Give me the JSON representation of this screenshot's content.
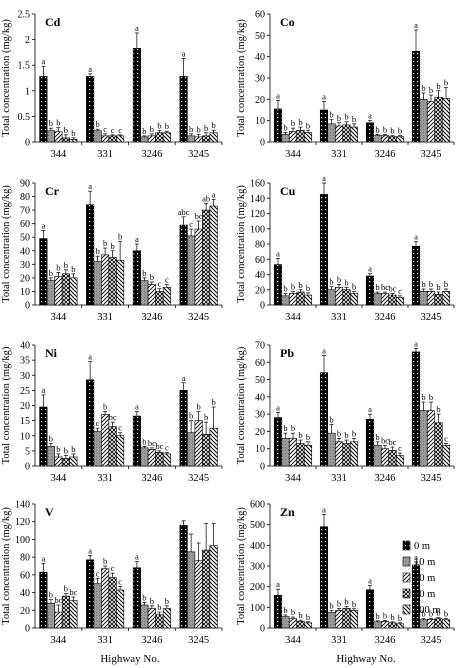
{
  "figure": {
    "ylabel": "Total concentration (mg/kg)",
    "xlabel": "Highway No."
  },
  "legend": [
    "0 m",
    "10 m",
    "20 m",
    "50 m",
    "100 m"
  ],
  "chart_data": [
    {
      "type": "bar",
      "title": "Cd",
      "categories": [
        "344",
        "331",
        "3246",
        "3245"
      ],
      "ylim": [
        0,
        2.5
      ],
      "yticks": [
        0,
        0.5,
        1,
        1.5,
        2,
        2.5
      ],
      "ytick_labels": [
        "0",
        "0.5",
        "1",
        "1.5",
        "2",
        "2.5"
      ],
      "series": [
        {
          "name": "0 m",
          "values": [
            1.28,
            1.28,
            1.83,
            1.28
          ],
          "errors": [
            0.2,
            0.05,
            0.3,
            0.35
          ],
          "letters": [
            "a",
            "a",
            "a",
            "a"
          ]
        },
        {
          "name": "10 m",
          "values": [
            0.22,
            0.22,
            0.1,
            0.12
          ],
          "errors": [
            0.05,
            0.03,
            0.02,
            0.04
          ],
          "letters": [
            "b",
            "b",
            "b",
            "b"
          ]
        },
        {
          "name": "20 m",
          "values": [
            0.2,
            0.12,
            0.12,
            0.1
          ],
          "errors": [
            0.08,
            0.04,
            0.04,
            0.05
          ],
          "letters": [
            "b",
            "c",
            "b",
            "b"
          ]
        },
        {
          "name": "50 m",
          "values": [
            0.08,
            0.12,
            0.18,
            0.12
          ],
          "errors": [
            0.06,
            0.02,
            0.04,
            0.06
          ],
          "letters": [
            "b",
            "c",
            "b",
            "b"
          ]
        },
        {
          "name": "100 m",
          "values": [
            0.05,
            0.12,
            0.18,
            0.18
          ],
          "errors": [
            0.03,
            0.02,
            0.03,
            0.05
          ],
          "letters": [
            "b",
            "c",
            "b",
            "b"
          ]
        }
      ]
    },
    {
      "type": "bar",
      "title": "Co",
      "categories": [
        "344",
        "331",
        "3246",
        "3245"
      ],
      "ylim": [
        0,
        60
      ],
      "yticks": [
        0,
        10,
        20,
        30,
        40,
        50,
        60
      ],
      "ytick_labels": [
        "0",
        "10",
        "20",
        "30",
        "40",
        "50",
        "60"
      ],
      "series": [
        {
          "name": "0 m",
          "values": [
            15.5,
            15,
            9,
            42.5
          ],
          "errors": [
            4,
            4,
            1,
            10
          ],
          "letters": [
            "a",
            "a",
            "a",
            "a"
          ]
        },
        {
          "name": "10 m",
          "values": [
            3.5,
            8.5,
            3,
            20
          ],
          "errors": [
            1,
            2,
            0.5,
            3
          ],
          "letters": [
            "b",
            "b",
            "b",
            "b"
          ]
        },
        {
          "name": "20 m",
          "values": [
            5,
            7.5,
            3,
            19
          ],
          "errors": [
            1.5,
            1.5,
            0.5,
            3
          ],
          "letters": [
            "b",
            "b",
            "b",
            "b"
          ]
        },
        {
          "name": "50 m",
          "values": [
            5.5,
            8,
            2.5,
            21
          ],
          "errors": [
            1.5,
            1.5,
            0.5,
            3
          ],
          "letters": [
            "b",
            "b",
            "b",
            "b"
          ]
        },
        {
          "name": "100 m",
          "values": [
            4.5,
            7,
            2.5,
            20.5
          ],
          "errors": [
            1,
            1.5,
            0.5,
            5
          ],
          "letters": [
            "b",
            "b",
            "b",
            "b"
          ]
        }
      ]
    },
    {
      "type": "bar",
      "title": "Cr",
      "categories": [
        "344",
        "331",
        "3246",
        "3245"
      ],
      "ylim": [
        0,
        90
      ],
      "yticks": [
        0,
        10,
        20,
        30,
        40,
        50,
        60,
        70,
        80,
        90
      ],
      "ytick_labels": [
        "0",
        "10",
        "20",
        "30",
        "40",
        "50",
        "60",
        "70",
        "80",
        "90"
      ],
      "series": [
        {
          "name": "0 m",
          "values": [
            49,
            74,
            40,
            59
          ],
          "errors": [
            6,
            10,
            5,
            6
          ],
          "letters": [
            "a",
            "a",
            "a",
            "abc"
          ]
        },
        {
          "name": "10 m",
          "values": [
            18,
            32,
            18,
            51
          ],
          "errors": [
            2,
            4,
            2,
            5
          ],
          "letters": [
            "b",
            "b",
            "b",
            "c"
          ]
        },
        {
          "name": "20 m",
          "values": [
            21,
            37,
            15,
            56
          ],
          "errors": [
            3,
            5,
            2,
            6
          ],
          "letters": [
            "b",
            "b",
            "b",
            "bc"
          ]
        },
        {
          "name": "50 m",
          "values": [
            23,
            35,
            10,
            70
          ],
          "errors": [
            3,
            5,
            2,
            5
          ],
          "letters": [
            "b",
            "b",
            "c",
            "ab"
          ]
        },
        {
          "name": "100 m",
          "values": [
            20,
            33,
            13,
            73
          ],
          "errors": [
            3,
            14,
            2,
            5
          ],
          "letters": [
            "b",
            "b",
            "c",
            "a"
          ]
        }
      ]
    },
    {
      "type": "bar",
      "title": "Cu",
      "categories": [
        "344",
        "331",
        "3246",
        "3245"
      ],
      "ylim": [
        0,
        160
      ],
      "yticks": [
        0,
        20,
        40,
        60,
        80,
        100,
        120,
        140,
        160
      ],
      "ytick_labels": [
        "0",
        "20",
        "40",
        "60",
        "80",
        "100",
        "120",
        "140",
        "160"
      ],
      "series": [
        {
          "name": "0 m",
          "values": [
            53,
            145,
            38,
            77
          ],
          "errors": [
            8,
            15,
            3,
            6
          ],
          "letters": [
            "a",
            "a",
            "a",
            "a"
          ]
        },
        {
          "name": "10 m",
          "values": [
            12,
            20,
            15,
            18
          ],
          "errors": [
            3,
            4,
            2,
            3
          ],
          "letters": [
            "b",
            "b",
            "b",
            "b"
          ]
        },
        {
          "name": "20 m",
          "values": [
            15,
            23,
            15,
            18
          ],
          "errors": [
            3,
            4,
            2,
            3
          ],
          "letters": [
            "b",
            "b",
            "bc",
            "b"
          ]
        },
        {
          "name": "50 m",
          "values": [
            17,
            20,
            13,
            14
          ],
          "errors": [
            3,
            3,
            2,
            3
          ],
          "letters": [
            "b",
            "b",
            "bc",
            "b"
          ]
        },
        {
          "name": "100 m",
          "values": [
            13,
            15,
            10,
            18
          ],
          "errors": [
            3,
            3,
            2,
            3
          ],
          "letters": [
            "b",
            "b",
            "c",
            "b"
          ]
        }
      ]
    },
    {
      "type": "bar",
      "title": "Ni",
      "categories": [
        "344",
        "331",
        "3246",
        "3245"
      ],
      "ylim": [
        0,
        40
      ],
      "yticks": [
        0,
        5,
        10,
        15,
        20,
        25,
        30,
        35,
        40
      ],
      "ytick_labels": [
        "0",
        "5",
        "10",
        "15",
        "20",
        "25",
        "30",
        "35",
        "40"
      ],
      "series": [
        {
          "name": "0 m",
          "values": [
            19.5,
            28.5,
            16.5,
            25
          ],
          "errors": [
            4,
            6,
            1.5,
            2.5
          ],
          "letters": [
            "a",
            "a",
            "a",
            "a"
          ]
        },
        {
          "name": "10 m",
          "values": [
            6.5,
            11.5,
            6,
            11
          ],
          "errors": [
            1,
            1,
            0.5,
            4
          ],
          "letters": [
            "b",
            "c",
            "b",
            "b"
          ]
        },
        {
          "name": "20 m",
          "values": [
            3,
            17,
            5.5,
            15
          ],
          "errors": [
            1,
            1,
            0.5,
            3
          ],
          "letters": [
            "b",
            "b",
            "bc",
            "b"
          ]
        },
        {
          "name": "50 m",
          "values": [
            2.5,
            13,
            4.5,
            10.5
          ],
          "errors": [
            1,
            1.5,
            0.5,
            4
          ],
          "letters": [
            "b",
            "bc",
            "bc",
            "b"
          ]
        },
        {
          "name": "100 m",
          "values": [
            3,
            10,
            4,
            12.5
          ],
          "errors": [
            1,
            1,
            0.5,
            7
          ],
          "letters": [
            "b",
            "c",
            "c",
            "b"
          ]
        }
      ]
    },
    {
      "type": "bar",
      "title": "Pb",
      "categories": [
        "344",
        "331",
        "3246",
        "3245"
      ],
      "ylim": [
        0,
        70
      ],
      "yticks": [
        0,
        10,
        20,
        30,
        40,
        50,
        60,
        70
      ],
      "ytick_labels": [
        "0",
        "10",
        "20",
        "30",
        "40",
        "50",
        "60",
        "70"
      ],
      "series": [
        {
          "name": "0 m",
          "values": [
            28,
            54,
            27,
            66
          ],
          "errors": [
            3,
            10,
            3,
            2
          ],
          "letters": [
            "a",
            "a",
            "a",
            "a"
          ]
        },
        {
          "name": "10 m",
          "values": [
            16,
            19,
            12,
            32
          ],
          "errors": [
            3,
            5,
            2,
            5
          ],
          "letters": [
            "b",
            "b",
            "b",
            "b"
          ]
        },
        {
          "name": "20 m",
          "values": [
            16,
            14,
            10,
            32
          ],
          "errors": [
            3,
            2,
            2,
            5
          ],
          "letters": [
            "b",
            "b",
            "bc",
            "b"
          ]
        },
        {
          "name": "50 m",
          "values": [
            13,
            13,
            9,
            25
          ],
          "errors": [
            2,
            2,
            2,
            5
          ],
          "letters": [
            "b",
            "b",
            "bc",
            "b"
          ]
        },
        {
          "name": "100 m",
          "values": [
            12,
            14,
            6,
            12
          ],
          "errors": [
            2,
            2,
            1.5,
            1
          ],
          "letters": [
            "b",
            "b",
            "c",
            "c"
          ]
        }
      ]
    },
    {
      "type": "bar",
      "title": "V",
      "categories": [
        "344",
        "331",
        "3246",
        "3245"
      ],
      "ylim": [
        0,
        140
      ],
      "yticks": [
        0,
        20,
        40,
        60,
        80,
        100,
        120,
        140
      ],
      "ytick_labels": [
        "0",
        "20",
        "40",
        "60",
        "80",
        "100",
        "120",
        "140"
      ],
      "series": [
        {
          "name": "0 m",
          "values": [
            63,
            77,
            68,
            116
          ],
          "errors": [
            10,
            5,
            7,
            5
          ],
          "letters": [
            "a",
            "a",
            "a",
            ""
          ]
        },
        {
          "name": "10 m",
          "values": [
            28,
            50,
            26,
            86
          ],
          "errors": [
            4,
            6,
            3,
            20
          ],
          "letters": [
            "b",
            "c",
            "b",
            ""
          ]
        },
        {
          "name": "20 m",
          "values": [
            18,
            67,
            22,
            76
          ],
          "errors": [
            8,
            3,
            3,
            20
          ],
          "letters": [
            "bc",
            "b",
            "b",
            ""
          ]
        },
        {
          "name": "50 m",
          "values": [
            36,
            57,
            15,
            88
          ],
          "errors": [
            3,
            5,
            3,
            30
          ],
          "letters": [
            "b",
            "c",
            "b",
            ""
          ]
        },
        {
          "name": "100 m",
          "values": [
            31,
            43,
            22,
            93
          ],
          "errors": [
            4,
            4,
            3,
            25
          ],
          "letters": [
            "bc",
            "c",
            "b",
            ""
          ]
        }
      ]
    },
    {
      "type": "bar",
      "title": "Zn",
      "categories": [
        "344",
        "331",
        "3246",
        "3245"
      ],
      "ylim": [
        0,
        600
      ],
      "yticks": [
        0,
        100,
        200,
        300,
        400,
        500,
        600
      ],
      "ytick_labels": [
        "0",
        "100",
        "200",
        "300",
        "400",
        "500",
        "600"
      ],
      "series": [
        {
          "name": "0 m",
          "values": [
            158,
            490,
            185,
            305
          ],
          "errors": [
            30,
            60,
            20,
            15
          ],
          "letters": [
            "a",
            "a",
            "a",
            "a"
          ]
        },
        {
          "name": "10 m",
          "values": [
            55,
            75,
            30,
            40
          ],
          "errors": [
            8,
            10,
            5,
            5
          ],
          "letters": [
            "b",
            "b",
            "b",
            "b"
          ]
        },
        {
          "name": "20 m",
          "values": [
            45,
            85,
            32,
            42
          ],
          "errors": [
            8,
            10,
            5,
            5
          ],
          "letters": [
            "b",
            "b",
            "b",
            "b"
          ]
        },
        {
          "name": "50 m",
          "values": [
            32,
            95,
            25,
            45
          ],
          "errors": [
            6,
            10,
            5,
            5
          ],
          "letters": [
            "b",
            "b",
            "b",
            "b"
          ]
        },
        {
          "name": "100 m",
          "values": [
            25,
            85,
            20,
            40
          ],
          "errors": [
            5,
            8,
            5,
            5
          ],
          "letters": [
            "b",
            "b",
            "b",
            "b"
          ]
        }
      ]
    }
  ]
}
